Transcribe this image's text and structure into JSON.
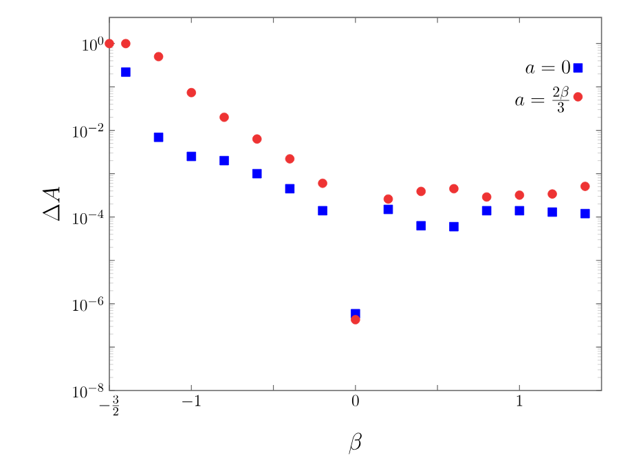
{
  "chart_data": {
    "type": "scatter",
    "xlabel": "\\beta",
    "ylabel": "\\Delta A",
    "x": [
      -1.5,
      -1.4,
      -1.2,
      -1.0,
      -0.8,
      -0.6,
      -0.4,
      -0.2,
      0.0,
      0.2,
      0.4,
      0.6,
      0.8,
      1.0,
      1.2,
      1.4
    ],
    "series": [
      {
        "name": "a=0",
        "color": "#0000ff",
        "marker": "square",
        "values": [
          null,
          0.22,
          0.0069,
          0.0025,
          0.002,
          0.001,
          0.00045,
          0.00014,
          5.9e-07,
          0.00015,
          6.3e-05,
          6e-05,
          0.00014,
          0.00014,
          0.00013,
          0.00012
        ]
      },
      {
        "name": "a=\\frac{2\\beta}{3}",
        "color": "#ee3333",
        "marker": "circle",
        "values": [
          1.0,
          1.0,
          0.5,
          0.074,
          0.02,
          0.0063,
          0.0022,
          0.0006,
          4.3e-07,
          0.00026,
          0.00039,
          0.00045,
          0.00029,
          0.00032,
          0.00034,
          0.00051
        ]
      }
    ],
    "log": "y",
    "xlim": [
      -1.5,
      1.5
    ],
    "ylim": [
      1e-08,
      4
    ],
    "xticks": [
      {
        "value": -1.5,
        "label": "-\\frac{3}{2}"
      },
      {
        "value": -1,
        "label": "-1"
      },
      {
        "value": -0.5,
        "label": null
      },
      {
        "value": 0,
        "label": "0"
      },
      {
        "value": 0.5,
        "label": null
      },
      {
        "value": 1,
        "label": "1"
      }
    ],
    "yticks": [
      {
        "value": 1e-08,
        "label": "10^{-8}"
      },
      {
        "value": 1e-07,
        "label": null
      },
      {
        "value": 1e-06,
        "label": "10^{-6}"
      },
      {
        "value": 1e-05,
        "label": null
      },
      {
        "value": 0.0001,
        "label": "10^{-4}"
      },
      {
        "value": 0.001,
        "label": null
      },
      {
        "value": 0.01,
        "label": "10^{-2}"
      },
      {
        "value": 0.1,
        "label": null
      },
      {
        "value": 1,
        "label": "10^{0}"
      }
    ],
    "grid": false,
    "legend": "top right"
  }
}
